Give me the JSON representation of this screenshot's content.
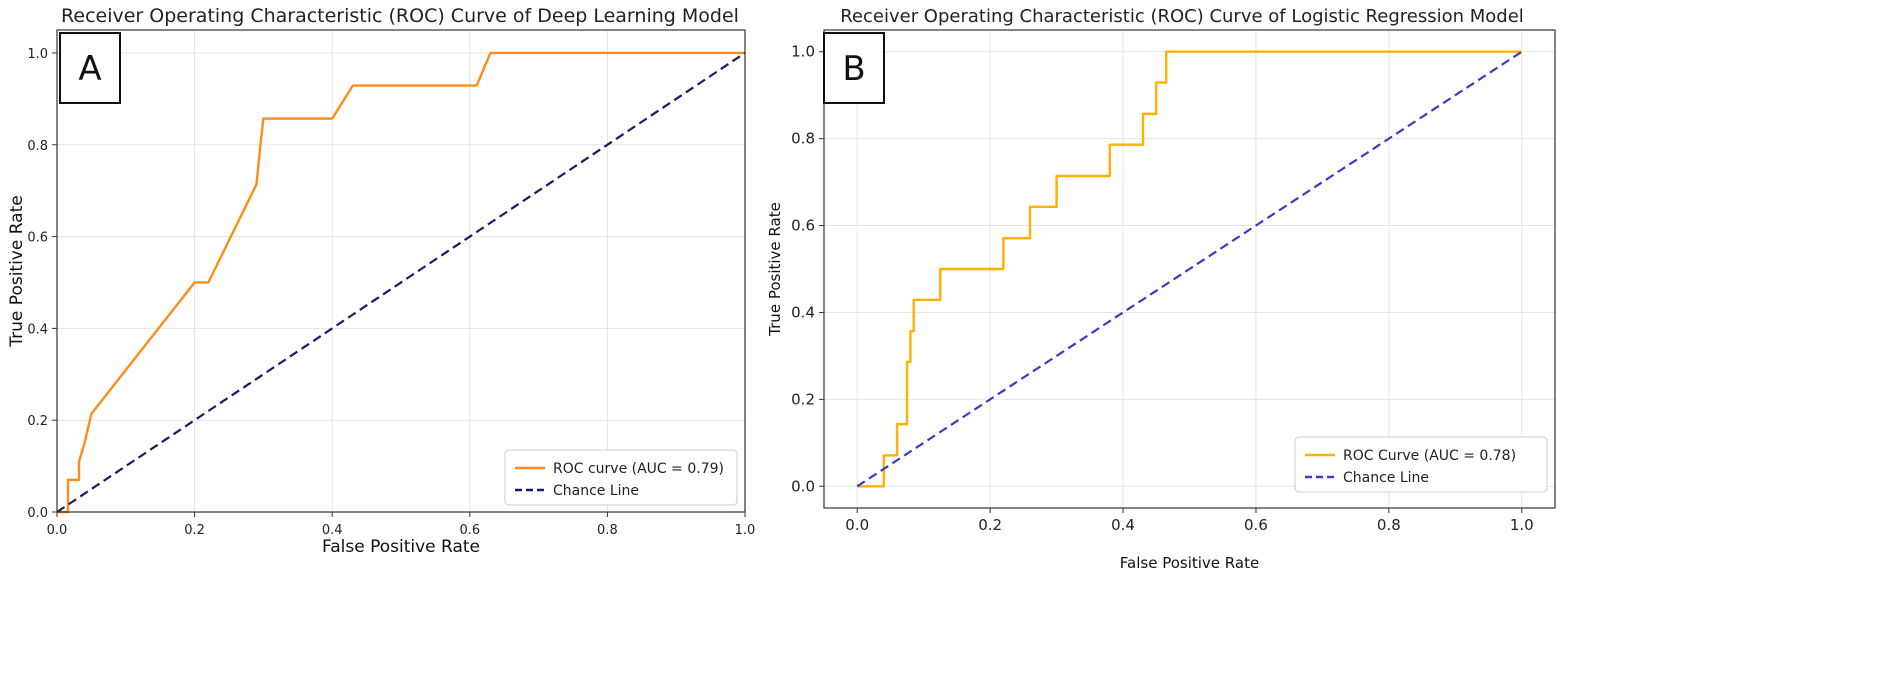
{
  "chart_data": [
    {
      "type": "line",
      "panel_label": "A",
      "title": "Receiver Operating Characteristic (ROC) Curve of Deep Learning Model",
      "xlabel": "False Positive Rate",
      "ylabel": "True Positive Rate",
      "xlim": [
        0.0,
        1.0
      ],
      "ylim": [
        0.0,
        1.05
      ],
      "xticks": [
        "0.0",
        "0.2",
        "0.4",
        "0.6",
        "0.8",
        "1.0"
      ],
      "yticks": [
        "0.0",
        "0.2",
        "0.4",
        "0.6",
        "0.8",
        "1.0"
      ],
      "grid": true,
      "legend_position": "bottom-right",
      "series": [
        {
          "name": "ROC curve (AUC = 0.79)",
          "color": "#ff8c1a",
          "style": "solid",
          "x": [
            0.0,
            0.016,
            0.016,
            0.032,
            0.032,
            0.04,
            0.05,
            0.2,
            0.22,
            0.29,
            0.295,
            0.3,
            0.4,
            0.43,
            0.61,
            0.63,
            1.0
          ],
          "y": [
            0.0,
            0.0,
            0.07,
            0.07,
            0.11,
            0.15,
            0.214,
            0.5,
            0.5,
            0.714,
            0.79,
            0.857,
            0.857,
            0.929,
            0.929,
            1.0,
            1.0
          ]
        },
        {
          "name": "Chance Line",
          "color": "#1a1a6e",
          "style": "dashed",
          "x": [
            0.0,
            1.0
          ],
          "y": [
            0.0,
            1.0
          ]
        }
      ]
    },
    {
      "type": "line",
      "panel_label": "B",
      "title": "Receiver Operating Characteristic (ROC) Curve of Logistic Regression Model",
      "xlabel": "False Positive Rate",
      "ylabel": "True Positive Rate",
      "xlim": [
        -0.05,
        1.05
      ],
      "ylim": [
        -0.05,
        1.05
      ],
      "xticks": [
        "0.0",
        "0.2",
        "0.4",
        "0.6",
        "0.8",
        "1.0"
      ],
      "yticks": [
        "0.0",
        "0.2",
        "0.4",
        "0.6",
        "0.8",
        "1.0"
      ],
      "grid": true,
      "legend_position": "bottom-right",
      "series": [
        {
          "name": "ROC Curve (AUC = 0.78)",
          "color": "#ffb000",
          "style": "solid",
          "x": [
            0.0,
            0.04,
            0.04,
            0.06,
            0.06,
            0.075,
            0.075,
            0.08,
            0.08,
            0.085,
            0.085,
            0.125,
            0.125,
            0.22,
            0.22,
            0.26,
            0.26,
            0.3,
            0.3,
            0.38,
            0.38,
            0.43,
            0.43,
            0.45,
            0.45,
            0.465,
            0.465,
            1.0
          ],
          "y": [
            0.0,
            0.0,
            0.071,
            0.071,
            0.143,
            0.143,
            0.286,
            0.286,
            0.357,
            0.357,
            0.429,
            0.429,
            0.5,
            0.5,
            0.571,
            0.571,
            0.643,
            0.643,
            0.714,
            0.714,
            0.786,
            0.786,
            0.857,
            0.857,
            0.929,
            0.929,
            1.0,
            1.0
          ]
        },
        {
          "name": "Chance Line",
          "color": "#3b3bc8",
          "style": "dashed",
          "x": [
            0.0,
            1.0
          ],
          "y": [
            0.0,
            1.0
          ]
        }
      ]
    }
  ]
}
